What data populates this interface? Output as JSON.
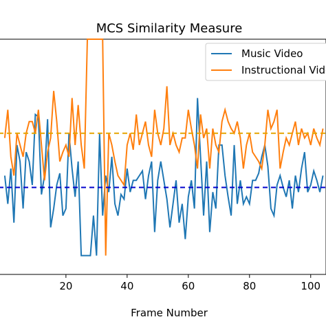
{
  "chart_data": {
    "type": "line",
    "title": "MCS Similarity Measure",
    "xlabel": "Frame Number",
    "ylabel": "",
    "xlim": [
      -2,
      105
    ],
    "ylim": [
      0,
      1
    ],
    "x_ticks": [
      20,
      40,
      60,
      80,
      100
    ],
    "legend_position": "top-right",
    "grid": false,
    "series": [
      {
        "name": "Music Video",
        "color": "#1f77b4",
        "values": [
          0.42,
          0.3,
          0.45,
          0.22,
          0.55,
          0.48,
          0.28,
          0.52,
          0.48,
          0.38,
          0.68,
          0.67,
          0.34,
          0.42,
          0.66,
          0.2,
          0.28,
          0.38,
          0.43,
          0.25,
          0.28,
          0.6,
          0.45,
          0.33,
          0.48,
          0.08,
          0.08,
          0.08,
          0.08,
          0.25,
          0.08,
          0.6,
          0.25,
          0.42,
          0.35,
          0.5,
          0.3,
          0.25,
          0.34,
          0.32,
          0.45,
          0.35,
          0.4,
          0.4,
          0.42,
          0.44,
          0.32,
          0.42,
          0.48,
          0.18,
          0.4,
          0.48,
          0.4,
          0.32,
          0.2,
          0.3,
          0.4,
          0.22,
          0.3,
          0.15,
          0.33,
          0.4,
          0.28,
          0.75,
          0.5,
          0.25,
          0.48,
          0.18,
          0.35,
          0.28,
          0.55,
          0.55,
          0.42,
          0.33,
          0.25,
          0.55,
          0.3,
          0.4,
          0.3,
          0.33,
          0.3,
          0.4,
          0.4,
          0.43,
          0.5,
          0.55,
          0.46,
          0.28,
          0.25,
          0.38,
          0.42,
          0.37,
          0.33,
          0.4,
          0.28,
          0.42,
          0.35,
          0.45,
          0.52,
          0.35,
          0.38,
          0.44,
          0.4,
          0.35,
          0.42
        ],
        "mean": 0.37
      },
      {
        "name": "Instructional Video",
        "color": "#ff7f0e",
        "values": [
          0.58,
          0.7,
          0.5,
          0.42,
          0.6,
          0.55,
          0.5,
          0.6,
          0.65,
          0.65,
          0.6,
          0.7,
          0.55,
          0.4,
          0.52,
          0.58,
          0.78,
          0.65,
          0.48,
          0.52,
          0.55,
          0.5,
          0.75,
          0.55,
          0.72,
          0.55,
          0.45,
          1.0,
          1.0,
          1.0,
          1.0,
          1.0,
          1.0,
          0.08,
          0.6,
          0.55,
          0.48,
          0.42,
          0.4,
          0.38,
          0.55,
          0.6,
          0.53,
          0.68,
          0.55,
          0.6,
          0.65,
          0.55,
          0.5,
          0.7,
          0.6,
          0.55,
          0.62,
          0.8,
          0.55,
          0.6,
          0.55,
          0.52,
          0.58,
          0.58,
          0.7,
          0.62,
          0.55,
          0.45,
          0.68,
          0.58,
          0.62,
          0.45,
          0.62,
          0.55,
          0.52,
          0.65,
          0.7,
          0.65,
          0.62,
          0.6,
          0.65,
          0.58,
          0.45,
          0.55,
          0.6,
          0.52,
          0.5,
          0.48,
          0.45,
          0.55,
          0.7,
          0.62,
          0.65,
          0.7,
          0.45,
          0.52,
          0.58,
          0.55,
          0.6,
          0.65,
          0.55,
          0.62,
          0.58,
          0.6,
          0.55,
          0.62,
          0.58,
          0.55,
          0.62
        ],
        "mean": 0.6
      }
    ]
  }
}
